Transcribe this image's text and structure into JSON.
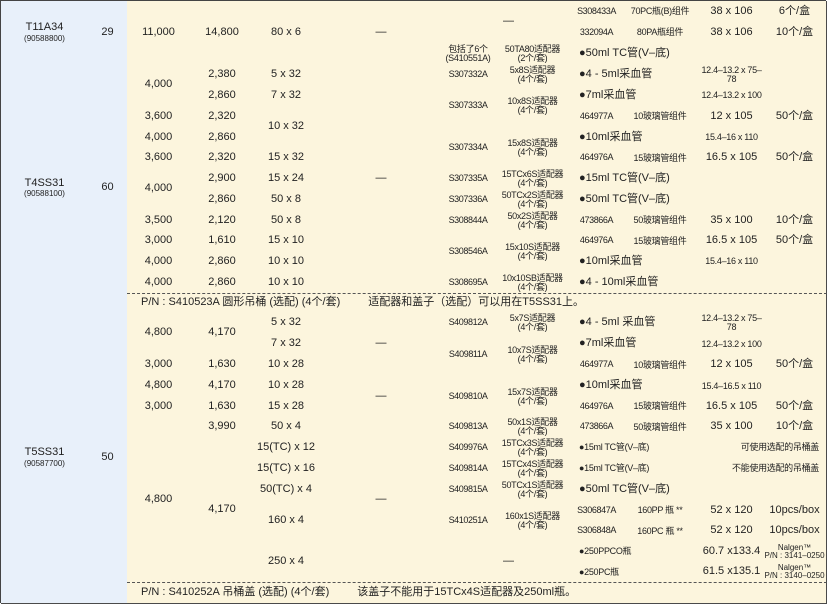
{
  "colors": {
    "rotor_bg": "#e8f0fa",
    "body_bg": "#fcf5dd",
    "border": "#4a4a4a"
  },
  "rotors": [
    {
      "name": "T11A34",
      "catalog": "(90588800)",
      "places": "29",
      "left": [
        "11,000",
        "14,800",
        "80 x 6",
        "—"
      ],
      "right": [
        "—",
        "S308433A",
        "70PC瓶(B)组件",
        "38 x 106",
        "6个/盒",
        "332094A",
        "80PA瓶组件",
        "38 x 106",
        "10个/盒",
        "包括了6个\n(S410551A)",
        "50TA80适配器\n(2个/套)",
        "●50ml TC管(V–底)"
      ]
    },
    {
      "name": "T4SS31",
      "catalog": "(90588100)",
      "places": "60",
      "left": [
        "4,000",
        "2,380",
        "5 x 32",
        "2,860",
        "7 x 32",
        "3,600",
        "2,320",
        "4,000",
        "2,860",
        "10 x 32",
        "3,600",
        "2,320",
        "15 x 32",
        "4,000",
        "2,900",
        "15 x 24",
        "2,860",
        "50 x 8",
        "3,500",
        "2,120",
        "50 x 8",
        "3,000",
        "1,610",
        "15 x 10",
        "4,000",
        "2,860",
        "10 x 10",
        "4,000",
        "2,860",
        "10 x 10",
        "—"
      ],
      "right": [
        "S307332A",
        "5x8S适配器\n(4个/套)",
        "●4 - 5ml采血管",
        "12.4–13.2 x 75–78",
        "S307333A",
        "10x8S适配器\n(4个/套)",
        "●7ml采血管",
        "12.4–13.2 x 100",
        "464977A",
        "10玻璃管组件",
        "12 x 105",
        "50个/盒",
        "S307334A",
        "15x8S适配器\n(4个/套)",
        "●10ml采血管",
        "15.4–16 x 110",
        "464976A",
        "15玻璃管组件",
        "16.5 x 105",
        "50个/盒",
        "S307335A",
        "15TCx6S适配器\n(4个/套)",
        "●15ml TC管(V–底)",
        "S307336A",
        "50TCx2S适配器\n(4个/套)",
        "●50ml TC管(V–底)",
        "S308844A",
        "50x2S适配器\n(4个/套)",
        "473866A",
        "50玻璃管组件",
        "35 x 100",
        "10个/盒",
        "S308546A",
        "15x10S适配器\n(4个/套)",
        "464976A",
        "15玻璃管组件",
        "16.5 x 105",
        "50个/盒",
        "●10ml采血管",
        "15.4–16 x 110",
        "S308695A",
        "10x10SB适配器\n(4个/套)",
        "●4 - 10ml采血管"
      ],
      "note": {
        "part1": "P/N : S410523A  圆形吊桶 (选配) (4个/套)",
        "part2": "适配器和盖子（选配）可以用在T5SS31上。"
      }
    },
    {
      "name": "T5SS31",
      "catalog": "(90587700)",
      "places": "50",
      "left": [
        "4,800",
        "4,170",
        "5 x 32",
        "7 x 32",
        "3,000",
        "1,630",
        "10 x 28",
        "—",
        "4,800",
        "4,170",
        "10 x 28",
        "3,000",
        "1,630",
        "15 x 28",
        "—",
        "4,800",
        "3,990",
        "50 x 4",
        "4,170",
        "15(TC) x 12",
        "15(TC) x 16",
        "50(TC) x 4",
        "160 x 4",
        "250 x 4",
        "—"
      ],
      "right": [
        "S409812A",
        "5x7S适配器\n(4个/套)",
        "●4 - 5ml 采血管",
        "12.4–13.2 x 75–78",
        "S409811A",
        "10x7S适配器\n(4个/套)",
        "●7ml采血管",
        "12.4–13.2 x 100",
        "464977A",
        "10玻璃管组件",
        "12 x 105",
        "50个/盒",
        "S409810A",
        "15x7S适配器\n(4个/套)",
        "●10ml采血管",
        "15.4–16.5 x 110",
        "464976A",
        "15玻璃管组件",
        "16.5 x 105",
        "50个/盒",
        "S409813A",
        "50x1S适配器\n(4个/套)",
        "473866A",
        "50玻璃管组件",
        "35 x 100",
        "10个/盒",
        "S409976A",
        "15TCx3S适配器\n(4个/套)",
        "●15ml TC管(V–底)",
        "可使用选配的吊桶盖",
        "S409814A",
        "15TCx4S适配器\n(4个/套)",
        "●15ml TC管(V–底)",
        "不能使用选配的吊桶盖",
        "S409815A",
        "50TCx1S适配器\n(4个/套)",
        "●50ml TC管(V–底)",
        "S410251A",
        "160x1S适配器\n(4个/套)",
        "S306847A",
        "160PP 瓶 **",
        "52 x 120",
        "10pcs/box",
        "S306848A",
        "160PC 瓶 **",
        "52 x 120",
        "10pcs/box",
        "—",
        "●250PPCO瓶",
        "60.7 x133.4",
        "Nalgen™\nP/N : 3141–0250",
        "●250PC瓶",
        "61.5 x135.1",
        "Nalgen™\nP/N : 3140–0250"
      ],
      "note": {
        "part1": "P/N : S410252A 吊桶盖 (选配) (4个/套)",
        "part2": "该盖子不能用于15TCx4S适配器及250ml瓶。"
      }
    }
  ]
}
